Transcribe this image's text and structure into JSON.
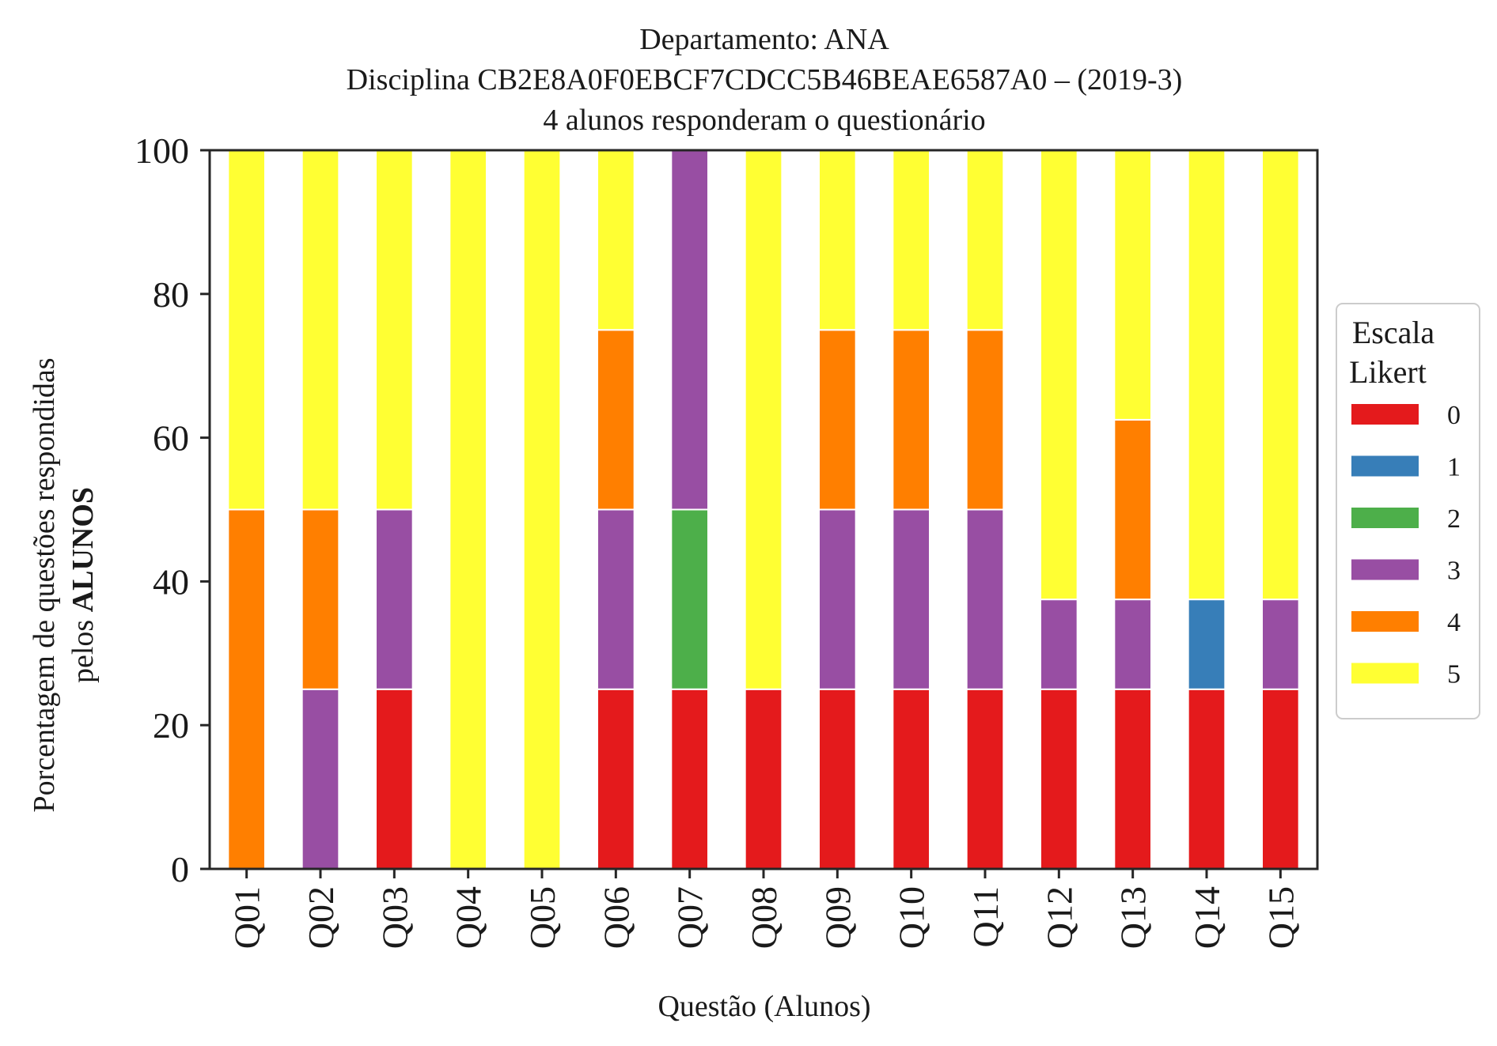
{
  "chart_data": {
    "type": "bar",
    "stacked": true,
    "title_lines": [
      "Departamento: ANA",
      "Disciplina CB2E8A0F0EBCF7CDCC5B46BEAE6587A0 – (2019-3)",
      "4 alunos responderam o questionário"
    ],
    "xlabel": "Questão (Alunos)",
    "ylabel_line1": "Porcentagem de questões respondidas",
    "ylabel_line2_prefix": "pelos ",
    "ylabel_line2_bold": "ALUNOS",
    "ylim": [
      0,
      100
    ],
    "yticks": [
      "0",
      "20",
      "40",
      "60",
      "80",
      "100"
    ],
    "categories": [
      "Q01",
      "Q02",
      "Q03",
      "Q04",
      "Q05",
      "Q06",
      "Q07",
      "Q08",
      "Q09",
      "Q10",
      "Q11",
      "Q12",
      "Q13",
      "Q14",
      "Q15"
    ],
    "legend_title_lines": [
      "Escala",
      "Likert"
    ],
    "legend_position": "right",
    "grid": false,
    "series": [
      {
        "name": "0",
        "color": "#e41a1c",
        "values": [
          0,
          0,
          25,
          0,
          0,
          25,
          25,
          25,
          25,
          25,
          25,
          25,
          25,
          25,
          25
        ]
      },
      {
        "name": "1",
        "color": "#377eb8",
        "values": [
          0,
          0,
          0,
          0,
          0,
          0,
          0,
          0,
          0,
          0,
          0,
          0,
          0,
          12.5,
          0
        ]
      },
      {
        "name": "2",
        "color": "#4daf4a",
        "values": [
          0,
          0,
          0,
          0,
          0,
          0,
          25,
          0,
          0,
          0,
          0,
          0,
          0,
          0,
          0
        ]
      },
      {
        "name": "3",
        "color": "#984ea3",
        "values": [
          0,
          25,
          25,
          0,
          0,
          25,
          50,
          0,
          25,
          25,
          25,
          12.5,
          12.5,
          0,
          12.5
        ]
      },
      {
        "name": "4",
        "color": "#ff7f00",
        "values": [
          50,
          25,
          0,
          0,
          0,
          25,
          0,
          0,
          25,
          25,
          25,
          0,
          25,
          0,
          0
        ]
      },
      {
        "name": "5",
        "color": "#ffff33",
        "values": [
          50,
          50,
          50,
          100,
          100,
          25,
          0,
          75,
          25,
          25,
          25,
          62.5,
          37.5,
          62.5,
          62.5
        ]
      }
    ]
  }
}
